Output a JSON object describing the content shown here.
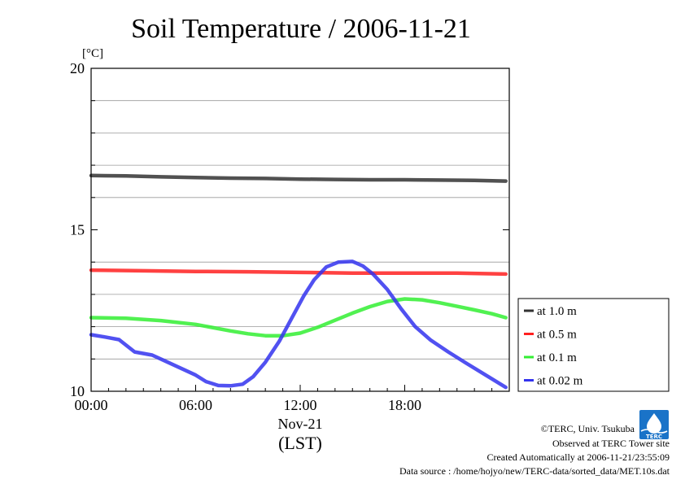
{
  "chart_data": {
    "type": "line",
    "title": "Soil Temperature / 2006-11-21",
    "ylabel": "[°C]",
    "xlabel": "(LST)",
    "x_date_label": "Nov-21",
    "xlim": [
      0,
      24
    ],
    "ylim": [
      10,
      20
    ],
    "x_ticks": [
      {
        "value": 0,
        "label": "00:00"
      },
      {
        "value": 6,
        "label": "06:00"
      },
      {
        "value": 12,
        "label": "12:00"
      },
      {
        "value": 18,
        "label": "18:00"
      }
    ],
    "y_ticks": [
      {
        "value": 10,
        "label": "10"
      },
      {
        "value": 15,
        "label": "15"
      },
      {
        "value": 20,
        "label": "20"
      }
    ],
    "grid_y": [
      11,
      12,
      13,
      14,
      16,
      17,
      18,
      19
    ],
    "legend_position": "right",
    "series": [
      {
        "name": "at 1.0 m",
        "color": "#333333",
        "x": [
          0,
          2,
          4,
          6,
          8,
          10,
          12,
          14,
          16,
          18,
          20,
          22,
          23.8
        ],
        "y": [
          16.68,
          16.67,
          16.64,
          16.62,
          16.6,
          16.59,
          16.57,
          16.56,
          16.55,
          16.55,
          16.54,
          16.53,
          16.51
        ]
      },
      {
        "name": "at 0.5 m",
        "color": "#ff2020",
        "x": [
          0,
          3,
          6,
          9,
          12,
          15,
          18,
          21,
          23.8
        ],
        "y": [
          13.75,
          13.73,
          13.71,
          13.7,
          13.68,
          13.66,
          13.66,
          13.66,
          13.63
        ]
      },
      {
        "name": "at 0.1 m",
        "color": "#33ee33",
        "x": [
          0,
          2,
          4,
          6,
          8,
          9,
          10,
          11,
          12,
          13,
          14,
          15,
          16,
          17,
          18,
          19,
          20,
          21,
          22,
          23,
          23.8
        ],
        "y": [
          12.28,
          12.26,
          12.19,
          12.07,
          11.87,
          11.78,
          11.72,
          11.72,
          11.8,
          11.98,
          12.2,
          12.42,
          12.62,
          12.78,
          12.86,
          12.83,
          12.74,
          12.63,
          12.52,
          12.4,
          12.28
        ]
      },
      {
        "name": "at 0.02 m",
        "color": "#3333ee",
        "x": [
          0,
          0.8,
          1.6,
          2.5,
          3.5,
          4.2,
          5.2,
          6,
          6.6,
          7.3,
          8,
          8.7,
          9.3,
          10,
          10.8,
          11.5,
          12.2,
          12.8,
          13.5,
          14.2,
          15,
          15.6,
          16.2,
          17,
          17.8,
          18.6,
          19.5,
          20.5,
          21.5,
          22.5,
          23.8
        ],
        "y": [
          11.75,
          11.68,
          11.6,
          11.22,
          11.12,
          10.95,
          10.7,
          10.5,
          10.3,
          10.18,
          10.17,
          10.22,
          10.45,
          10.9,
          11.55,
          12.25,
          12.95,
          13.45,
          13.85,
          14.0,
          14.02,
          13.88,
          13.62,
          13.15,
          12.55,
          12.0,
          11.58,
          11.22,
          10.88,
          10.55,
          10.12
        ]
      }
    ]
  },
  "footer": {
    "copyright": "©TERC, Univ. Tsukuba",
    "observed": "Observed at TERC Tower site",
    "created": "Created Automatically at 2006-11-21/23:55:09",
    "source": "Data source : /home/hojyo/new/TERC-data/sorted_data/MET.10s.dat"
  },
  "logo": {
    "text": "TERC",
    "color": "#1a73c8"
  }
}
